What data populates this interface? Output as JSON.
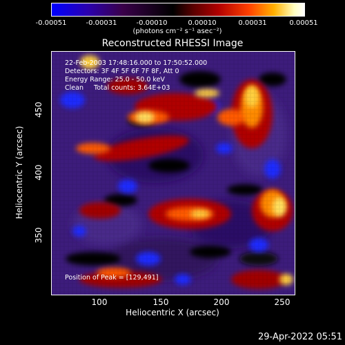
{
  "colorbar": {
    "ticks": [
      "-0.00051",
      "-0.00031",
      "-0.00010",
      "0.00010",
      "0.00031",
      "0.00051"
    ],
    "unit": "(photons cm⁻² s⁻¹ asec⁻²)"
  },
  "title": "Reconstructed RHESSI Image",
  "info": {
    "line1": "22-Feb-2003 17:48:16.000 to 17:50:52.000",
    "line2": "Detectors: 3F 4F 5F 6F 7F 8F, Att 0",
    "line3": "Energy Range: 25.0 - 50.0 keV",
    "line4": "Clean     Total counts: 3.64E+03"
  },
  "peak": "Position of Peak = [129,491]",
  "axes": {
    "xlabel": "Heliocentric X (arcsec)",
    "ylabel": "Heliocentric Y (arcsec)",
    "xticks": [
      "100",
      "150",
      "200",
      "250"
    ],
    "yticks": [
      "450",
      "400",
      "350"
    ]
  },
  "timestamp": "29-Apr-2022 05:51"
}
